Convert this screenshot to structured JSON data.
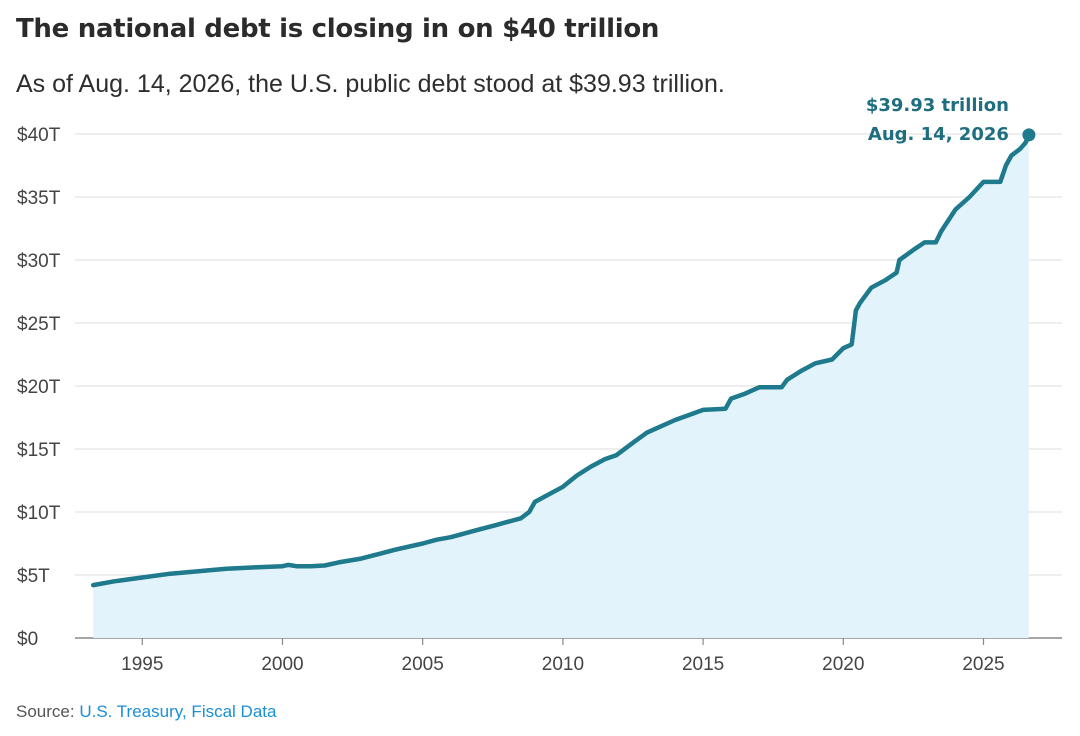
{
  "header": {
    "title": "The national debt is closing in on $40 trillion",
    "subtitle": "As of Aug. 14, 2026, the U.S. public debt stood at $39.93 trillion."
  },
  "source": {
    "label": "Source:",
    "link_text": "U.S. Treasury, Fiscal Data"
  },
  "colors": {
    "line": "#1e7a8c",
    "fill": "#e3f3fb",
    "grid": "#dddddd",
    "annotation": "#1e6e80",
    "source_link": "#1a8fd6"
  },
  "chart_data": {
    "type": "area",
    "title": "The national debt is closing in on $40 trillion",
    "subtitle": "As of Aug. 14, 2026, the U.S. public debt stood at $39.93 trillion.",
    "xlabel": "",
    "ylabel": "",
    "xlim": [
      1992.6,
      2027.8
    ],
    "ylim": [
      0,
      40
    ],
    "grid": true,
    "y_ticks": [
      0,
      5,
      10,
      15,
      20,
      25,
      30,
      35,
      40
    ],
    "y_tick_labels": [
      "$0",
      "$5T",
      "$10T",
      "$15T",
      "$20T",
      "$25T",
      "$30T",
      "$35T",
      "$40T"
    ],
    "x_ticks": [
      1995,
      2000,
      2005,
      2010,
      2015,
      2020,
      2025
    ],
    "x_tick_labels": [
      "1995",
      "2000",
      "2005",
      "2010",
      "2015",
      "2020",
      "2025"
    ],
    "series": [
      {
        "name": "",
        "unit": "trillion USD",
        "points": [
          [
            1993.25,
            4.2
          ],
          [
            1994.0,
            4.5
          ],
          [
            1995.0,
            4.8
          ],
          [
            1996.0,
            5.1
          ],
          [
            1997.0,
            5.3
          ],
          [
            1998.0,
            5.5
          ],
          [
            1999.0,
            5.6
          ],
          [
            2000.0,
            5.7
          ],
          [
            2000.2,
            5.8
          ],
          [
            2000.5,
            5.7
          ],
          [
            2001.0,
            5.7
          ],
          [
            2001.5,
            5.75
          ],
          [
            2002.0,
            6.0
          ],
          [
            2002.8,
            6.3
          ],
          [
            2003.5,
            6.7
          ],
          [
            2004.0,
            7.0
          ],
          [
            2005.0,
            7.5
          ],
          [
            2005.5,
            7.8
          ],
          [
            2006.0,
            8.0
          ],
          [
            2007.0,
            8.6
          ],
          [
            2007.5,
            8.9
          ],
          [
            2008.0,
            9.2
          ],
          [
            2008.5,
            9.5
          ],
          [
            2008.8,
            10.0
          ],
          [
            2009.0,
            10.8
          ],
          [
            2010.0,
            12.0
          ],
          [
            2010.5,
            12.9
          ],
          [
            2011.0,
            13.6
          ],
          [
            2011.5,
            14.2
          ],
          [
            2011.9,
            14.5
          ],
          [
            2012.5,
            15.5
          ],
          [
            2013.0,
            16.3
          ],
          [
            2013.4,
            16.7
          ],
          [
            2014.0,
            17.3
          ],
          [
            2014.5,
            17.7
          ],
          [
            2015.0,
            18.1
          ],
          [
            2015.8,
            18.2
          ],
          [
            2016.0,
            19.0
          ],
          [
            2016.5,
            19.4
          ],
          [
            2017.0,
            19.9
          ],
          [
            2017.8,
            19.9
          ],
          [
            2018.0,
            20.5
          ],
          [
            2018.5,
            21.2
          ],
          [
            2019.0,
            21.8
          ],
          [
            2019.6,
            22.1
          ],
          [
            2020.0,
            23.0
          ],
          [
            2020.3,
            23.3
          ],
          [
            2020.45,
            26.0
          ],
          [
            2020.6,
            26.6
          ],
          [
            2021.0,
            27.8
          ],
          [
            2021.5,
            28.4
          ],
          [
            2021.9,
            29.0
          ],
          [
            2022.0,
            30.0
          ],
          [
            2022.5,
            30.8
          ],
          [
            2022.9,
            31.4
          ],
          [
            2023.3,
            31.4
          ],
          [
            2023.5,
            32.3
          ],
          [
            2024.0,
            34.0
          ],
          [
            2024.5,
            35.0
          ],
          [
            2025.0,
            36.2
          ],
          [
            2025.6,
            36.2
          ],
          [
            2025.8,
            37.5
          ],
          [
            2026.0,
            38.3
          ],
          [
            2026.3,
            38.8
          ],
          [
            2026.5,
            39.3
          ],
          [
            2026.62,
            39.93
          ]
        ]
      }
    ],
    "annotations": [
      {
        "x": 2026.62,
        "y": 39.93,
        "lines": [
          "$39.93 trillion",
          "Aug. 14, 2026"
        ]
      }
    ]
  }
}
